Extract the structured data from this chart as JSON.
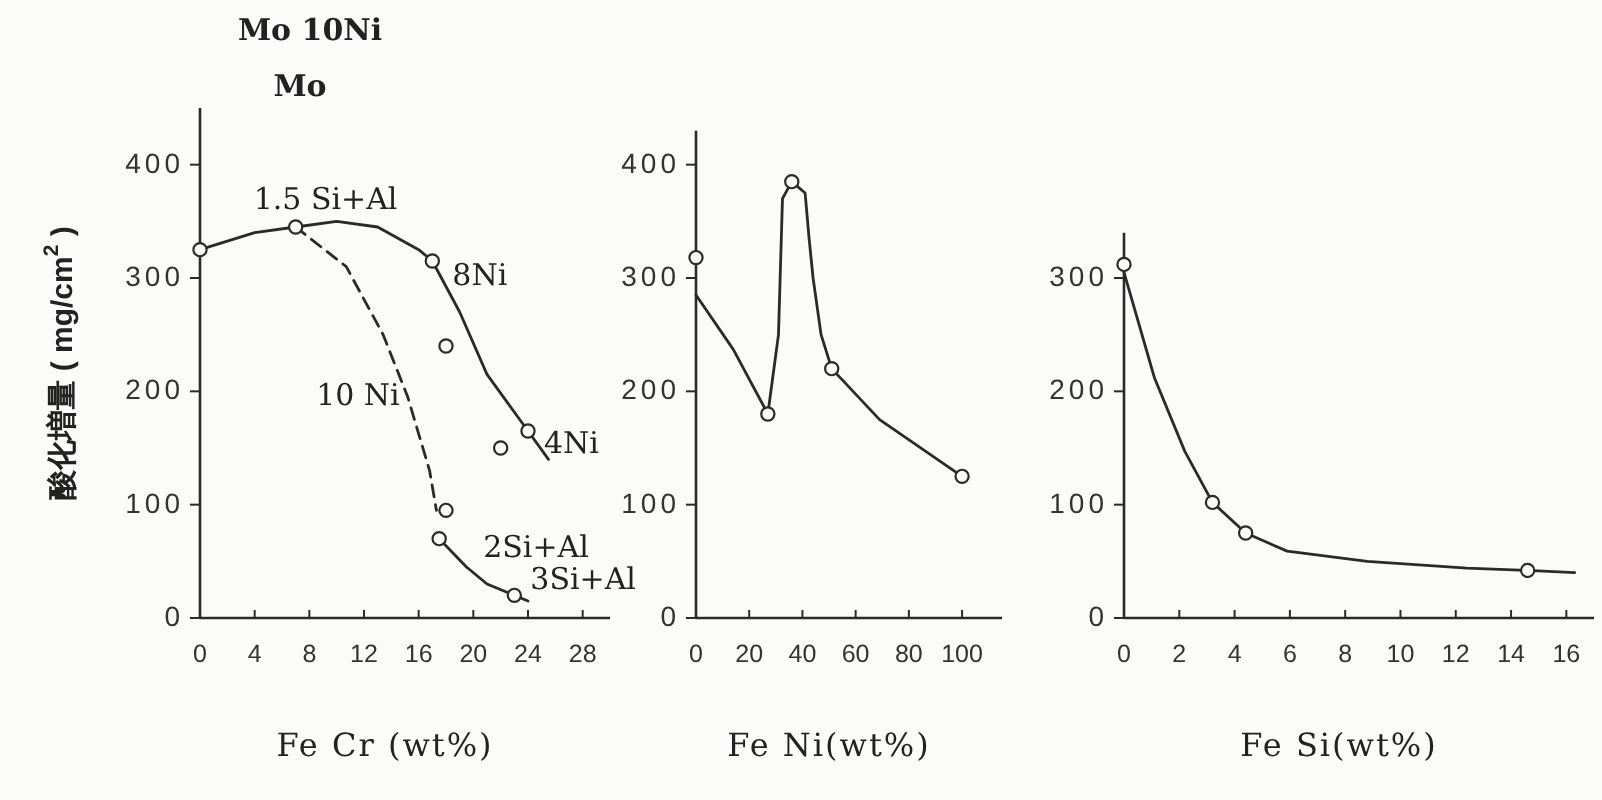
{
  "chart_data": [
    {
      "type": "line",
      "title": "Mo 10Ni",
      "subtitle": "Mo",
      "xlabel": "Fe Cr (wt%)",
      "ylabel": "酸化増量 ( mg/cm$^{2}$ )",
      "xlim": [
        0,
        30
      ],
      "ylim": [
        0,
        450
      ],
      "xticks": [
        0,
        4,
        8,
        12,
        16,
        20,
        24,
        28
      ],
      "yticks": [
        0,
        100,
        200,
        300,
        400
      ],
      "series": [
        {
          "color": "#2a2a2a",
          "line_style": "solid",
          "x": [
            0,
            4,
            7,
            10,
            13,
            16,
            17,
            19,
            21,
            24,
            25.5
          ],
          "values": [
            325,
            340,
            345,
            350,
            345,
            325,
            315,
            270,
            215,
            165,
            140
          ]
        },
        {
          "color": "#2a2a2a",
          "line_style": "dashed",
          "x": [
            7,
            10.7,
            13.4,
            15.2,
            16.8,
            17.3
          ],
          "values": [
            345,
            310,
            250,
            195,
            130,
            95
          ]
        },
        {
          "color": "#2a2a2a",
          "line_style": "solid",
          "x": [
            17.5,
            19.5,
            21,
            23,
            24
          ],
          "values": [
            70,
            45,
            30,
            20,
            15
          ]
        },
        {
          "type": "scatter",
          "color": "#2a2a2a",
          "marker": "circle",
          "x": [
            0,
            7,
            17,
            18,
            22,
            24,
            18,
            17.5,
            23
          ],
          "values": [
            325,
            345,
            315,
            240,
            150,
            165,
            95,
            70,
            20
          ]
        }
      ],
      "annotations": [
        {
          "text": "1.5 Si+Al",
          "x": 7,
          "y": 345
        },
        {
          "text": "8Ni",
          "x": 17,
          "y": 315
        },
        {
          "text": "10 Ni",
          "x": 15.2,
          "y": 195
        },
        {
          "text": "4Ni",
          "x": 24,
          "y": 165
        },
        {
          "text": "2Si+Al",
          "x": 17.5,
          "y": 70
        },
        {
          "text": "3Si+Al",
          "x": 23,
          "y": 20
        }
      ]
    },
    {
      "type": "line",
      "xlabel": "Fe Ni(wt%)",
      "xlim": [
        0,
        115
      ],
      "ylim": [
        0,
        430
      ],
      "xticks": [
        0,
        20,
        40,
        60,
        80,
        100
      ],
      "yticks": [
        0,
        100,
        200,
        300,
        400
      ],
      "series": [
        {
          "color": "#2a2a2a",
          "line_style": "solid",
          "x": [
            0,
            14,
            27,
            31,
            32.5,
            36,
            41,
            42.5,
            44,
            47,
            51,
            69,
            100
          ],
          "values": [
            285,
            237,
            180,
            250,
            370,
            385,
            375,
            335,
            300,
            250,
            220,
            175,
            125
          ]
        },
        {
          "type": "scatter",
          "color": "#2a2a2a",
          "marker": "circle",
          "x": [
            0,
            27,
            36,
            51,
            100
          ],
          "values": [
            318,
            180,
            385,
            220,
            125
          ]
        }
      ]
    },
    {
      "type": "line",
      "xlabel": "Fe Si(wt%)",
      "xlim": [
        0,
        17
      ],
      "ylim": [
        0,
        340
      ],
      "xticks": [
        0,
        2,
        4,
        6,
        8,
        10,
        12,
        14,
        16
      ],
      "yticks": [
        0,
        100,
        200,
        300
      ],
      "series": [
        {
          "color": "#2a2a2a",
          "line_style": "solid",
          "x": [
            0,
            1.1,
            2.2,
            3.2,
            4.4,
            5.9,
            8.8,
            12.4,
            14.6,
            16.3
          ],
          "values": [
            305,
            212,
            147,
            102,
            75,
            59,
            50,
            44,
            42,
            40
          ]
        },
        {
          "type": "scatter",
          "color": "#2a2a2a",
          "marker": "circle",
          "x": [
            0,
            3.2,
            4.4,
            14.6
          ],
          "values": [
            312,
            102,
            75,
            42
          ]
        }
      ]
    }
  ]
}
